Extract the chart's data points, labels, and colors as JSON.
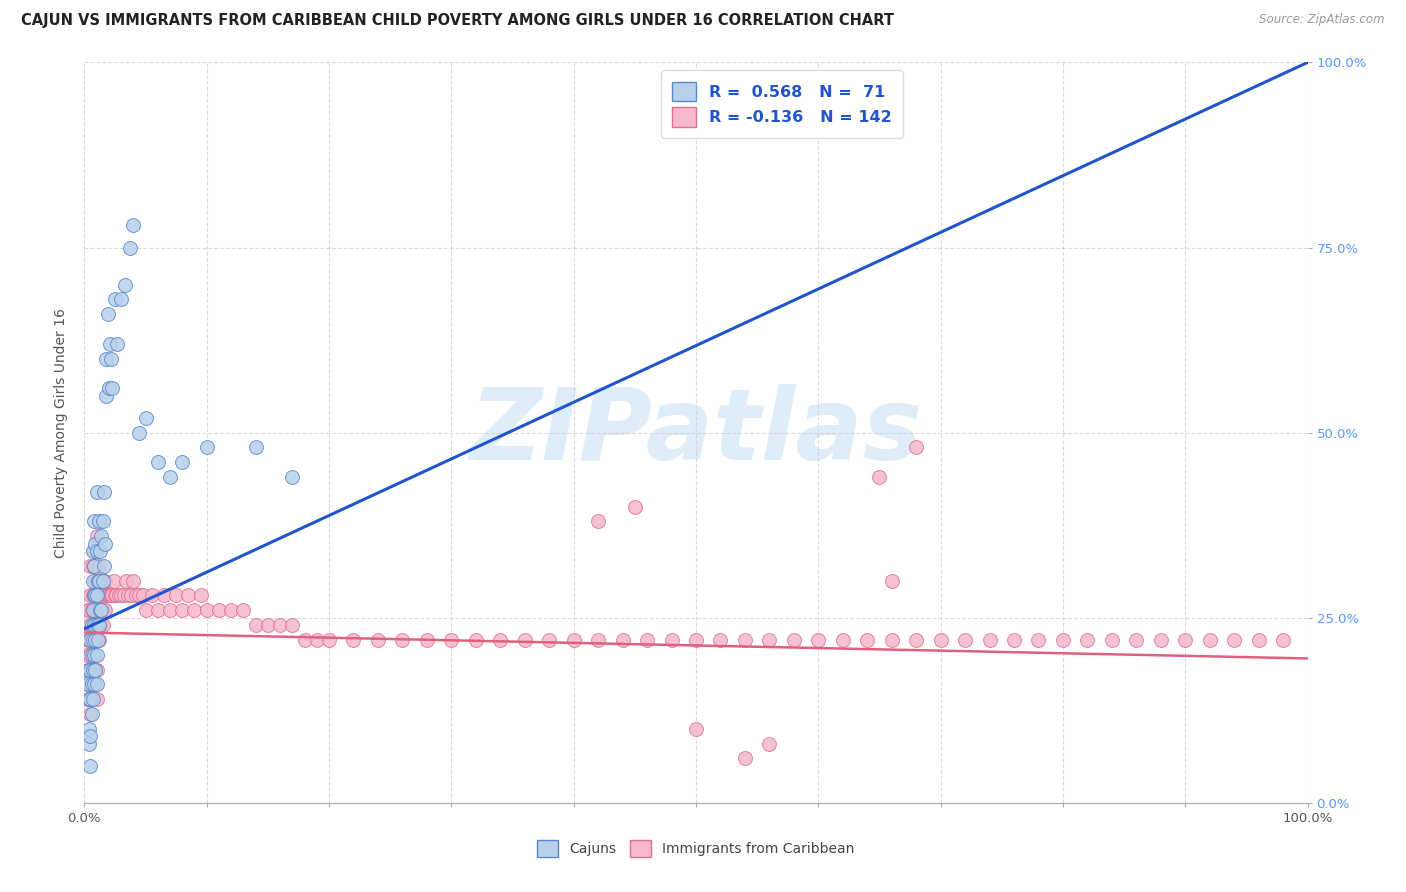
{
  "title": "CAJUN VS IMMIGRANTS FROM CARIBBEAN CHILD POVERTY AMONG GIRLS UNDER 16 CORRELATION CHART",
  "source": "Source: ZipAtlas.com",
  "ylabel": "Child Poverty Among Girls Under 16",
  "xlim": [
    0,
    1
  ],
  "ylim": [
    0,
    1
  ],
  "xticks": [
    0.0,
    0.1,
    0.2,
    0.3,
    0.4,
    0.5,
    0.6,
    0.7,
    0.8,
    0.9,
    1.0
  ],
  "yticks": [
    0.0,
    0.25,
    0.5,
    0.75,
    1.0
  ],
  "xticklabels_edge": {
    "0.0": "0.0%",
    "1.0": "100.0%"
  },
  "yticklabels_right": [
    "0.0%",
    "25.0%",
    "50.0%",
    "75.0%",
    "100.0%"
  ],
  "cajun_face": "#b8d0ea",
  "cajun_edge": "#5588cc",
  "caribbean_face": "#f5b8cc",
  "caribbean_edge": "#e07090",
  "trend_blue": "#2255cc",
  "trend_pink": "#e06080",
  "R1": "0.568",
  "N1": "71",
  "R2": "-0.136",
  "N2": "142",
  "legend_label1": "Cajuns",
  "legend_label2": "Immigrants from Caribbean",
  "watermark": "ZIPatlas",
  "bg": "#ffffff",
  "grid_color": "#cccccc",
  "blue_line": [
    [
      0.0,
      1.0
    ],
    [
      0.235,
      1.0
    ]
  ],
  "pink_line": [
    [
      0.0,
      1.0
    ],
    [
      0.23,
      0.195
    ]
  ],
  "cajun_x": [
    0.003,
    0.003,
    0.004,
    0.004,
    0.004,
    0.005,
    0.005,
    0.005,
    0.005,
    0.005,
    0.006,
    0.006,
    0.006,
    0.006,
    0.007,
    0.007,
    0.007,
    0.007,
    0.007,
    0.007,
    0.008,
    0.008,
    0.008,
    0.008,
    0.008,
    0.008,
    0.009,
    0.009,
    0.009,
    0.009,
    0.01,
    0.01,
    0.01,
    0.01,
    0.01,
    0.01,
    0.011,
    0.011,
    0.012,
    0.012,
    0.012,
    0.013,
    0.013,
    0.014,
    0.014,
    0.015,
    0.015,
    0.016,
    0.016,
    0.017,
    0.018,
    0.018,
    0.019,
    0.02,
    0.021,
    0.022,
    0.023,
    0.025,
    0.027,
    0.03,
    0.033,
    0.037,
    0.04,
    0.045,
    0.05,
    0.06,
    0.07,
    0.08,
    0.1,
    0.14,
    0.17
  ],
  "cajun_y": [
    0.16,
    0.18,
    0.08,
    0.1,
    0.14,
    0.05,
    0.09,
    0.14,
    0.18,
    0.22,
    0.12,
    0.16,
    0.2,
    0.24,
    0.14,
    0.18,
    0.22,
    0.26,
    0.3,
    0.34,
    0.16,
    0.2,
    0.24,
    0.28,
    0.32,
    0.38,
    0.18,
    0.22,
    0.28,
    0.35,
    0.16,
    0.2,
    0.24,
    0.28,
    0.34,
    0.42,
    0.22,
    0.3,
    0.24,
    0.3,
    0.38,
    0.26,
    0.34,
    0.26,
    0.36,
    0.3,
    0.38,
    0.32,
    0.42,
    0.35,
    0.55,
    0.6,
    0.66,
    0.56,
    0.62,
    0.6,
    0.56,
    0.68,
    0.62,
    0.68,
    0.7,
    0.75,
    0.78,
    0.5,
    0.52,
    0.46,
    0.44,
    0.46,
    0.48,
    0.48,
    0.44
  ],
  "carib_x": [
    0.002,
    0.002,
    0.003,
    0.003,
    0.003,
    0.003,
    0.004,
    0.004,
    0.004,
    0.004,
    0.005,
    0.005,
    0.005,
    0.005,
    0.005,
    0.005,
    0.006,
    0.006,
    0.006,
    0.006,
    0.007,
    0.007,
    0.007,
    0.007,
    0.007,
    0.008,
    0.008,
    0.008,
    0.008,
    0.008,
    0.009,
    0.009,
    0.009,
    0.009,
    0.01,
    0.01,
    0.01,
    0.01,
    0.01,
    0.01,
    0.011,
    0.011,
    0.012,
    0.012,
    0.012,
    0.013,
    0.013,
    0.014,
    0.014,
    0.015,
    0.015,
    0.016,
    0.016,
    0.017,
    0.017,
    0.018,
    0.019,
    0.02,
    0.021,
    0.022,
    0.023,
    0.024,
    0.025,
    0.026,
    0.028,
    0.03,
    0.032,
    0.034,
    0.036,
    0.038,
    0.04,
    0.042,
    0.045,
    0.048,
    0.05,
    0.055,
    0.06,
    0.065,
    0.07,
    0.075,
    0.08,
    0.085,
    0.09,
    0.095,
    0.1,
    0.11,
    0.12,
    0.13,
    0.14,
    0.15,
    0.16,
    0.17,
    0.18,
    0.19,
    0.2,
    0.22,
    0.24,
    0.26,
    0.28,
    0.3,
    0.32,
    0.34,
    0.36,
    0.38,
    0.4,
    0.42,
    0.44,
    0.46,
    0.48,
    0.5,
    0.52,
    0.54,
    0.56,
    0.58,
    0.6,
    0.62,
    0.64,
    0.66,
    0.68,
    0.7,
    0.72,
    0.74,
    0.76,
    0.78,
    0.8,
    0.82,
    0.84,
    0.86,
    0.88,
    0.9,
    0.92,
    0.94,
    0.96,
    0.98,
    0.5,
    0.54,
    0.56,
    0.42,
    0.45,
    0.65,
    0.66,
    0.68
  ],
  "carib_y": [
    0.16,
    0.2,
    0.14,
    0.18,
    0.22,
    0.26,
    0.14,
    0.18,
    0.22,
    0.26,
    0.12,
    0.16,
    0.2,
    0.24,
    0.28,
    0.32,
    0.14,
    0.18,
    0.22,
    0.26,
    0.16,
    0.2,
    0.24,
    0.28,
    0.32,
    0.16,
    0.2,
    0.24,
    0.28,
    0.34,
    0.18,
    0.22,
    0.26,
    0.3,
    0.14,
    0.18,
    0.22,
    0.26,
    0.3,
    0.36,
    0.22,
    0.28,
    0.22,
    0.26,
    0.32,
    0.24,
    0.28,
    0.26,
    0.3,
    0.24,
    0.28,
    0.26,
    0.3,
    0.26,
    0.3,
    0.28,
    0.28,
    0.28,
    0.28,
    0.28,
    0.28,
    0.3,
    0.28,
    0.28,
    0.28,
    0.28,
    0.28,
    0.3,
    0.28,
    0.28,
    0.3,
    0.28,
    0.28,
    0.28,
    0.26,
    0.28,
    0.26,
    0.28,
    0.26,
    0.28,
    0.26,
    0.28,
    0.26,
    0.28,
    0.26,
    0.26,
    0.26,
    0.26,
    0.24,
    0.24,
    0.24,
    0.24,
    0.22,
    0.22,
    0.22,
    0.22,
    0.22,
    0.22,
    0.22,
    0.22,
    0.22,
    0.22,
    0.22,
    0.22,
    0.22,
    0.22,
    0.22,
    0.22,
    0.22,
    0.22,
    0.22,
    0.22,
    0.22,
    0.22,
    0.22,
    0.22,
    0.22,
    0.22,
    0.22,
    0.22,
    0.22,
    0.22,
    0.22,
    0.22,
    0.22,
    0.22,
    0.22,
    0.22,
    0.22,
    0.22,
    0.22,
    0.22,
    0.22,
    0.22,
    0.1,
    0.06,
    0.08,
    0.38,
    0.4,
    0.44,
    0.3,
    0.48
  ]
}
